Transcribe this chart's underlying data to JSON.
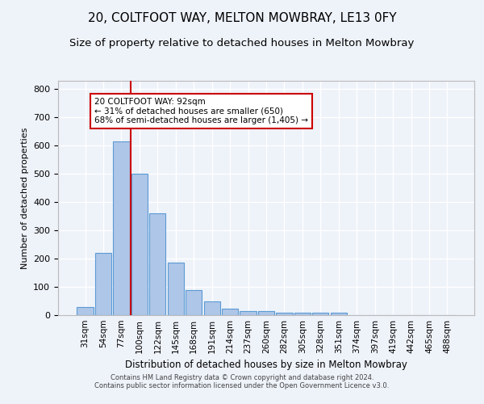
{
  "title1": "20, COLTFOOT WAY, MELTON MOWBRAY, LE13 0FY",
  "title2": "Size of property relative to detached houses in Melton Mowbray",
  "xlabel": "Distribution of detached houses by size in Melton Mowbray",
  "ylabel": "Number of detached properties",
  "categories": [
    "31sqm",
    "54sqm",
    "77sqm",
    "100sqm",
    "122sqm",
    "145sqm",
    "168sqm",
    "191sqm",
    "214sqm",
    "237sqm",
    "260sqm",
    "282sqm",
    "305sqm",
    "328sqm",
    "351sqm",
    "374sqm",
    "397sqm",
    "419sqm",
    "442sqm",
    "465sqm",
    "488sqm"
  ],
  "values": [
    30,
    220,
    615,
    500,
    360,
    185,
    88,
    50,
    22,
    14,
    13,
    8,
    8,
    8,
    8,
    0,
    0,
    0,
    0,
    0,
    0
  ],
  "bar_color": "#aec6e8",
  "bar_edge_color": "#5b9bd5",
  "vline_x_idx": 2.5,
  "vline_color": "#cc0000",
  "annotation_line1": "20 COLTFOOT WAY: 92sqm",
  "annotation_line2": "← 31% of detached houses are smaller (650)",
  "annotation_line3": "68% of semi-detached houses are larger (1,405) →",
  "annotation_box_color": "#cc0000",
  "ylim": [
    0,
    830
  ],
  "yticks": [
    0,
    100,
    200,
    300,
    400,
    500,
    600,
    700,
    800
  ],
  "footer1": "Contains HM Land Registry data © Crown copyright and database right 2024.",
  "footer2": "Contains public sector information licensed under the Open Government Licence v3.0.",
  "bg_color": "#eef2f9",
  "grid_color": "#ffffff",
  "title1_fontsize": 11,
  "title2_fontsize": 9.5
}
